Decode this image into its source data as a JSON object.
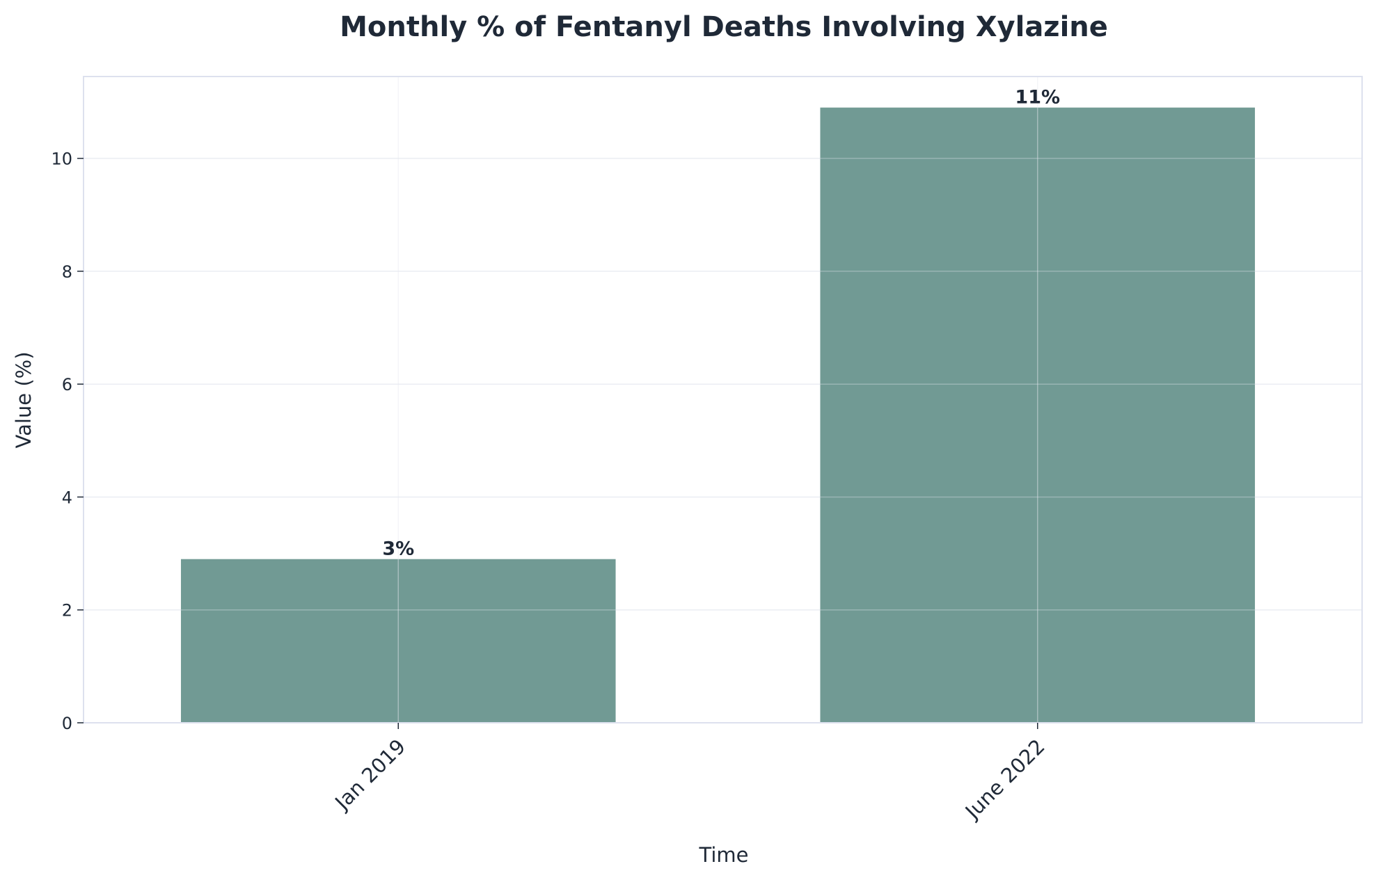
{
  "chart_data": {
    "type": "bar",
    "title": "Monthly % of Fentanyl Deaths Involving Xylazine",
    "xlabel": "Time",
    "ylabel": "Value (%)",
    "categories": [
      "Jan 2019",
      "June 2022"
    ],
    "values": [
      2.9,
      10.9
    ],
    "data_labels": [
      "3%",
      "11%"
    ],
    "ylim": [
      0,
      11.45
    ],
    "yticks": [
      0,
      2,
      4,
      6,
      8,
      10
    ],
    "ytick_labels": [
      "0",
      "2",
      "4",
      "6",
      "8",
      "10"
    ],
    "grid": true,
    "legend": "none",
    "colors": {
      "bar": "#719a94",
      "text": "#1f2937",
      "frame": "#dde1ee",
      "grid": "#eef0f4"
    }
  }
}
